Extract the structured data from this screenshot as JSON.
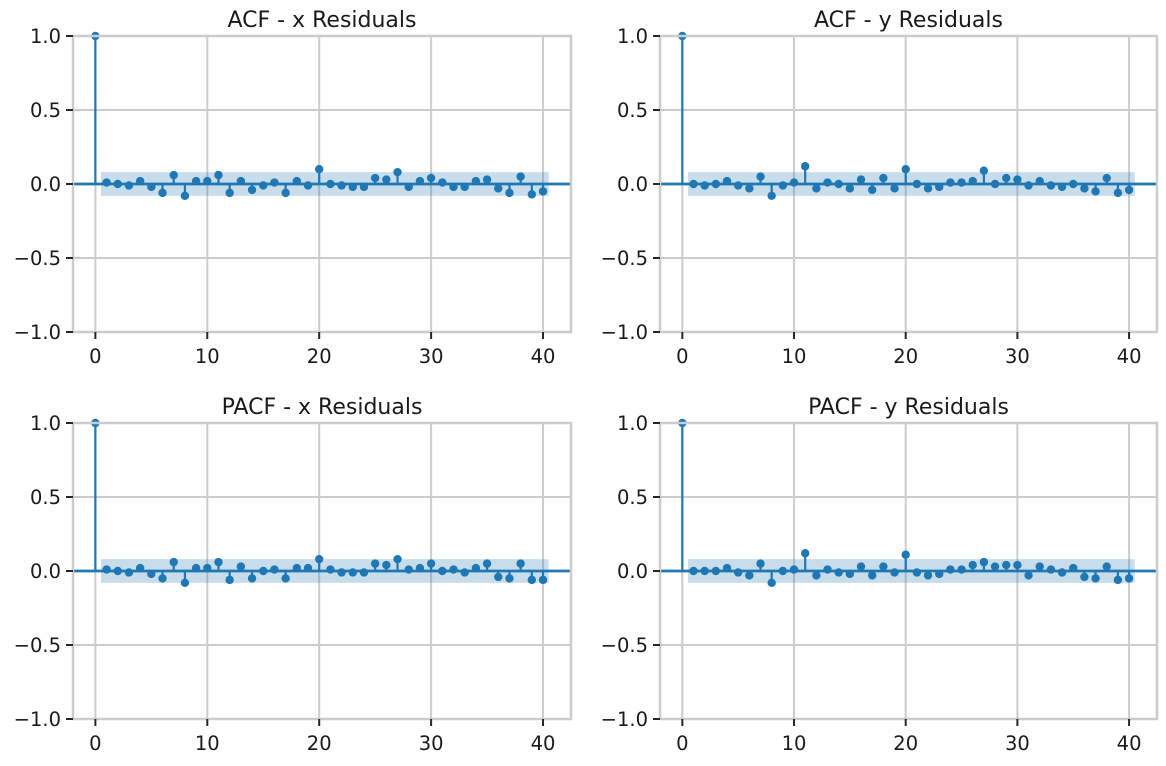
{
  "colors": {
    "series": "#1f77b4",
    "band": "#1f77b4",
    "grid": "#cccccc",
    "text": "#1a1a1a"
  },
  "chart_data": [
    {
      "type": "stem",
      "title": "ACF - x Residuals",
      "x": [
        0,
        1,
        2,
        3,
        4,
        5,
        6,
        7,
        8,
        9,
        10,
        11,
        12,
        13,
        14,
        15,
        16,
        17,
        18,
        19,
        20,
        21,
        22,
        23,
        24,
        25,
        26,
        27,
        28,
        29,
        30,
        31,
        32,
        33,
        34,
        35,
        36,
        37,
        38,
        39,
        40
      ],
      "values": [
        1.0,
        0.01,
        0.0,
        -0.01,
        0.02,
        -0.02,
        -0.06,
        0.06,
        -0.08,
        0.02,
        0.02,
        0.06,
        -0.06,
        0.02,
        -0.04,
        -0.01,
        0.01,
        -0.06,
        0.02,
        -0.01,
        0.1,
        0.0,
        -0.01,
        -0.02,
        -0.02,
        0.04,
        0.03,
        0.08,
        -0.02,
        0.02,
        0.04,
        0.01,
        -0.02,
        -0.02,
        0.02,
        0.03,
        -0.03,
        -0.06,
        0.05,
        -0.07,
        -0.05
      ],
      "confidence_band": 0.08,
      "xlim": [
        -2,
        42.5
      ],
      "ylim": [
        -1.0,
        1.0
      ],
      "xticks": [
        0,
        10,
        20,
        30,
        40
      ],
      "yticks": [
        -1.0,
        -0.5,
        0.0,
        0.5,
        1.0
      ],
      "xtick_labels": [
        "0",
        "10",
        "20",
        "30",
        "40"
      ],
      "ytick_labels": [
        "−1.0",
        "−0.5",
        "0.0",
        "0.5",
        "1.0"
      ],
      "grid": true
    },
    {
      "type": "stem",
      "title": "ACF - y Residuals",
      "x": [
        0,
        1,
        2,
        3,
        4,
        5,
        6,
        7,
        8,
        9,
        10,
        11,
        12,
        13,
        14,
        15,
        16,
        17,
        18,
        19,
        20,
        21,
        22,
        23,
        24,
        25,
        26,
        27,
        28,
        29,
        30,
        31,
        32,
        33,
        34,
        35,
        36,
        37,
        38,
        39,
        40
      ],
      "values": [
        1.0,
        0.0,
        -0.01,
        0.0,
        0.02,
        -0.01,
        -0.03,
        0.05,
        -0.08,
        -0.01,
        0.01,
        0.12,
        -0.03,
        0.01,
        0.0,
        -0.03,
        0.03,
        -0.04,
        0.04,
        -0.03,
        0.1,
        0.0,
        -0.03,
        -0.02,
        0.01,
        0.01,
        0.02,
        0.09,
        0.0,
        0.04,
        0.03,
        -0.01,
        0.02,
        -0.01,
        -0.02,
        0.0,
        -0.03,
        -0.05,
        0.04,
        -0.06,
        -0.04
      ],
      "confidence_band": 0.08,
      "xlim": [
        -2,
        42.5
      ],
      "ylim": [
        -1.0,
        1.0
      ],
      "xticks": [
        0,
        10,
        20,
        30,
        40
      ],
      "yticks": [
        -1.0,
        -0.5,
        0.0,
        0.5,
        1.0
      ],
      "xtick_labels": [
        "0",
        "10",
        "20",
        "30",
        "40"
      ],
      "ytick_labels": [
        "−1.0",
        "−0.5",
        "0.0",
        "0.5",
        "1.0"
      ],
      "grid": true
    },
    {
      "type": "stem",
      "title": "PACF - x Residuals",
      "x": [
        0,
        1,
        2,
        3,
        4,
        5,
        6,
        7,
        8,
        9,
        10,
        11,
        12,
        13,
        14,
        15,
        16,
        17,
        18,
        19,
        20,
        21,
        22,
        23,
        24,
        25,
        26,
        27,
        28,
        29,
        30,
        31,
        32,
        33,
        34,
        35,
        36,
        37,
        38,
        39,
        40
      ],
      "values": [
        1.0,
        0.01,
        0.0,
        -0.01,
        0.02,
        -0.02,
        -0.05,
        0.06,
        -0.08,
        0.02,
        0.02,
        0.06,
        -0.06,
        0.03,
        -0.05,
        0.0,
        0.01,
        -0.05,
        0.02,
        0.02,
        0.08,
        0.01,
        -0.01,
        -0.01,
        -0.01,
        0.05,
        0.04,
        0.08,
        0.01,
        0.02,
        0.05,
        0.0,
        0.01,
        -0.01,
        0.02,
        0.05,
        -0.04,
        -0.05,
        0.05,
        -0.06,
        -0.06
      ],
      "confidence_band": 0.08,
      "xlim": [
        -2,
        42.5
      ],
      "ylim": [
        -1.0,
        1.0
      ],
      "xticks": [
        0,
        10,
        20,
        30,
        40
      ],
      "yticks": [
        -1.0,
        -0.5,
        0.0,
        0.5,
        1.0
      ],
      "xtick_labels": [
        "0",
        "10",
        "20",
        "30",
        "40"
      ],
      "ytick_labels": [
        "−1.0",
        "−0.5",
        "0.0",
        "0.5",
        "1.0"
      ],
      "grid": true
    },
    {
      "type": "stem",
      "title": "PACF - y Residuals",
      "x": [
        0,
        1,
        2,
        3,
        4,
        5,
        6,
        7,
        8,
        9,
        10,
        11,
        12,
        13,
        14,
        15,
        16,
        17,
        18,
        19,
        20,
        21,
        22,
        23,
        24,
        25,
        26,
        27,
        28,
        29,
        30,
        31,
        32,
        33,
        34,
        35,
        36,
        37,
        38,
        39,
        40
      ],
      "values": [
        1.0,
        0.0,
        0.0,
        0.0,
        0.02,
        -0.01,
        -0.03,
        0.05,
        -0.08,
        0.0,
        0.01,
        0.12,
        -0.03,
        0.01,
        -0.01,
        -0.02,
        0.03,
        -0.03,
        0.03,
        -0.01,
        0.11,
        -0.01,
        -0.03,
        -0.02,
        0.01,
        0.01,
        0.04,
        0.06,
        0.03,
        0.04,
        0.04,
        -0.03,
        0.03,
        0.01,
        -0.01,
        0.02,
        -0.04,
        -0.05,
        0.03,
        -0.06,
        -0.05
      ],
      "confidence_band": 0.08,
      "xlim": [
        -2,
        42.5
      ],
      "ylim": [
        -1.0,
        1.0
      ],
      "xticks": [
        0,
        10,
        20,
        30,
        40
      ],
      "yticks": [
        -1.0,
        -0.5,
        0.0,
        0.5,
        1.0
      ],
      "xtick_labels": [
        "0",
        "10",
        "20",
        "30",
        "40"
      ],
      "ytick_labels": [
        "−1.0",
        "−0.5",
        "0.0",
        "0.5",
        "1.0"
      ],
      "grid": true
    }
  ]
}
